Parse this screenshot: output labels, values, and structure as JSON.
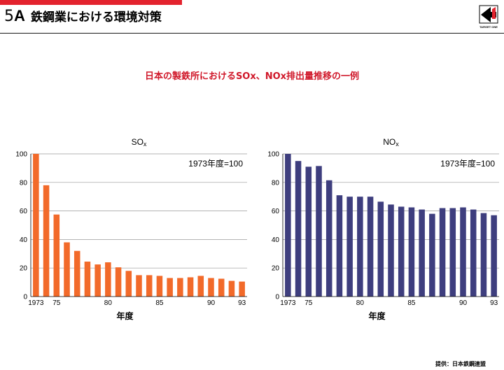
{
  "header": {
    "section_number": "5",
    "section_letter": "A",
    "title": "鉄鋼業における環境対策",
    "accent_color": "#e3232e"
  },
  "logo": {
    "icon": "company-logo-icon",
    "caption": "TARGET ONE"
  },
  "subtitle": "日本の製鉄所におけるSOx、NOx排出量推移の一例",
  "credit": "提供：日本鉄鋼連盟",
  "chart_data": [
    {
      "type": "bar",
      "title_main": "SO",
      "title_sub": "x",
      "annotation": "1973年度=100",
      "xlabel": "年度",
      "color": "#f26a2a",
      "ylim": [
        0,
        100
      ],
      "yticks": [
        0,
        20,
        40,
        60,
        80,
        100
      ],
      "grid": true,
      "x": [
        1973,
        1974,
        1975,
        1976,
        1977,
        1978,
        1979,
        1980,
        1981,
        1982,
        1983,
        1984,
        1985,
        1986,
        1987,
        1988,
        1989,
        1990,
        1991,
        1992,
        1993
      ],
      "xtick_labels": [
        {
          "year": 1973,
          "label": "1973"
        },
        {
          "year": 1975,
          "label": "75"
        },
        {
          "year": 1980,
          "label": "80"
        },
        {
          "year": 1985,
          "label": "85"
        },
        {
          "year": 1990,
          "label": "90"
        },
        {
          "year": 1993,
          "label": "93"
        }
      ],
      "values": [
        100,
        78,
        57.5,
        38,
        32,
        24.5,
        22.5,
        24,
        20.5,
        18,
        15,
        15,
        14.5,
        13,
        13,
        13.5,
        14.5,
        13,
        12.5,
        11,
        10.5
      ]
    },
    {
      "type": "bar",
      "title_main": "NO",
      "title_sub": "x",
      "annotation": "1973年度=100",
      "xlabel": "年度",
      "color": "#3e3e7e",
      "ylim": [
        0,
        100
      ],
      "yticks": [
        0,
        20,
        40,
        60,
        80,
        100
      ],
      "grid": true,
      "x": [
        1973,
        1974,
        1975,
        1976,
        1977,
        1978,
        1979,
        1980,
        1981,
        1982,
        1983,
        1984,
        1985,
        1986,
        1987,
        1988,
        1989,
        1990,
        1991,
        1992,
        1993
      ],
      "xtick_labels": [
        {
          "year": 1973,
          "label": "1973"
        },
        {
          "year": 1975,
          "label": "75"
        },
        {
          "year": 1980,
          "label": "80"
        },
        {
          "year": 1985,
          "label": "85"
        },
        {
          "year": 1990,
          "label": "90"
        },
        {
          "year": 1993,
          "label": "93"
        }
      ],
      "values": [
        100,
        95,
        91,
        91.5,
        81.5,
        71,
        70,
        70,
        70,
        66.5,
        64.5,
        63,
        62.5,
        61,
        58,
        62,
        62,
        62.5,
        61,
        58.5,
        57
      ]
    }
  ]
}
